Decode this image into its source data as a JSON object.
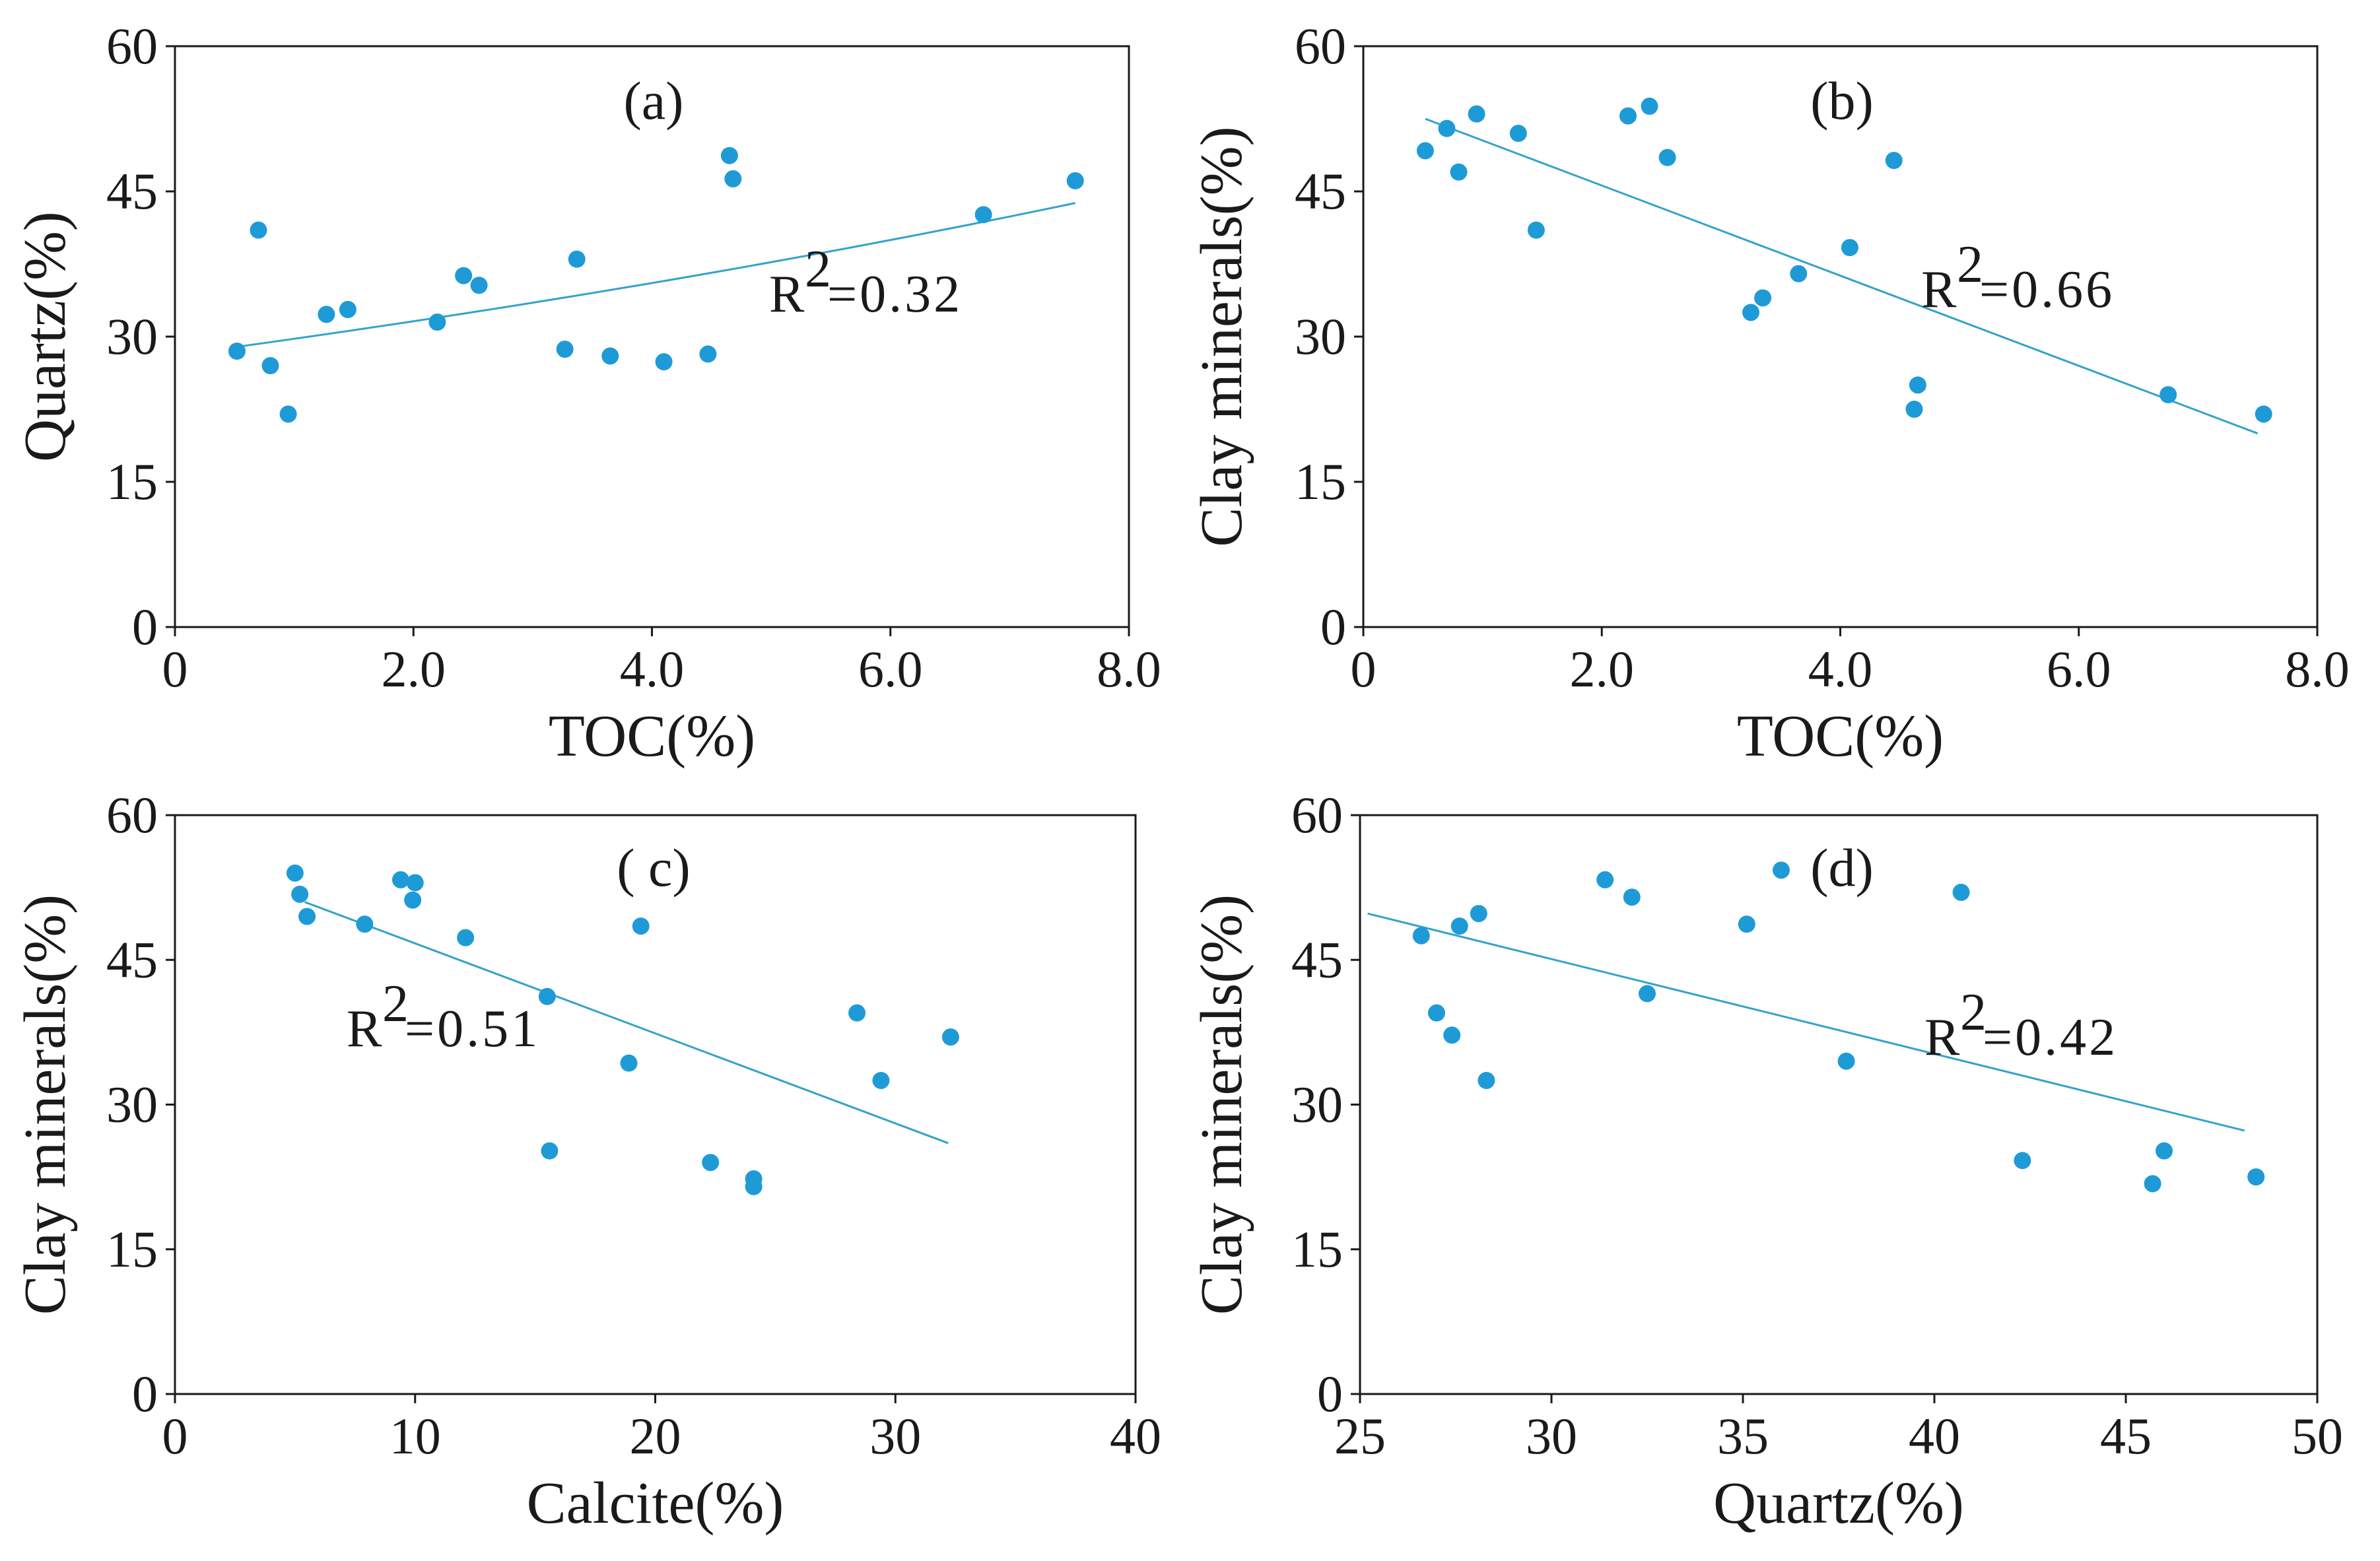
{
  "colors": {
    "point": "#1e9bd7",
    "trend": "#32a3cc",
    "axis": "#1a1a1a"
  },
  "chart_data": [
    {
      "type": "scatter",
      "panel_label": "(a)",
      "xlabel": "TOC(%)",
      "ylabel": "Quartz(%)",
      "xlim": [
        0,
        8
      ],
      "ylim": [
        0,
        60
      ],
      "xticks": [
        0,
        2,
        4,
        6,
        8
      ],
      "xtick_labels": [
        "0",
        "2.0",
        "4.0",
        "6.0",
        "8.0"
      ],
      "yticks": [
        0,
        15,
        30,
        45,
        60
      ],
      "ytick_labels": [
        "0",
        "15",
        "30",
        "45",
        "60"
      ],
      "trend": {
        "kind": "exponential",
        "x": [
          0.55,
          7.55
        ],
        "y": [
          29.0,
          43.8
        ]
      },
      "r2_label": "R",
      "r2_sup": "2",
      "r2_value": "=0.32",
      "points": [
        {
          "x": 0.52,
          "y": 28.5
        },
        {
          "x": 0.7,
          "y": 41.0
        },
        {
          "x": 0.8,
          "y": 27.0
        },
        {
          "x": 0.95,
          "y": 22.0
        },
        {
          "x": 1.27,
          "y": 32.3
        },
        {
          "x": 1.45,
          "y": 32.8
        },
        {
          "x": 2.2,
          "y": 31.5
        },
        {
          "x": 2.42,
          "y": 36.3
        },
        {
          "x": 2.55,
          "y": 35.3
        },
        {
          "x": 3.27,
          "y": 28.7
        },
        {
          "x": 3.37,
          "y": 38.0
        },
        {
          "x": 3.65,
          "y": 28.0
        },
        {
          "x": 4.1,
          "y": 27.4
        },
        {
          "x": 4.47,
          "y": 28.2
        },
        {
          "x": 4.65,
          "y": 48.7
        },
        {
          "x": 4.68,
          "y": 46.3
        },
        {
          "x": 6.78,
          "y": 42.6
        },
        {
          "x": 7.55,
          "y": 46.1
        }
      ]
    },
    {
      "type": "scatter",
      "panel_label": "(b)",
      "xlabel": "TOC(%)",
      "ylabel": "Clay minerals(%)",
      "xlim": [
        0,
        8
      ],
      "ylim": [
        0,
        60
      ],
      "xticks": [
        0,
        2,
        4,
        6,
        8
      ],
      "xtick_labels": [
        "0",
        "2.0",
        "4.0",
        "6.0",
        "8.0"
      ],
      "yticks": [
        0,
        15,
        30,
        45,
        60
      ],
      "ytick_labels": [
        "0",
        "15",
        "30",
        "45",
        "60"
      ],
      "trend": {
        "kind": "linear",
        "x": [
          0.52,
          7.5
        ],
        "y": [
          52.5,
          20.0
        ]
      },
      "r2_label": "R",
      "r2_sup": "2",
      "r2_value": "=0.66",
      "points": [
        {
          "x": 0.52,
          "y": 49.2
        },
        {
          "x": 0.7,
          "y": 51.5
        },
        {
          "x": 0.8,
          "y": 47.0
        },
        {
          "x": 0.95,
          "y": 53.0
        },
        {
          "x": 1.3,
          "y": 51.0
        },
        {
          "x": 1.45,
          "y": 41.0
        },
        {
          "x": 2.22,
          "y": 52.8
        },
        {
          "x": 2.4,
          "y": 53.8
        },
        {
          "x": 2.55,
          "y": 48.5
        },
        {
          "x": 3.25,
          "y": 32.5
        },
        {
          "x": 3.35,
          "y": 34.0
        },
        {
          "x": 3.65,
          "y": 36.5
        },
        {
          "x": 4.08,
          "y": 39.2
        },
        {
          "x": 4.45,
          "y": 48.2
        },
        {
          "x": 4.62,
          "y": 22.5
        },
        {
          "x": 4.65,
          "y": 25.0
        },
        {
          "x": 6.75,
          "y": 24.0
        },
        {
          "x": 7.55,
          "y": 22.0
        }
      ]
    },
    {
      "type": "scatter",
      "panel_label": "( c)",
      "xlabel": "Calcite(%)",
      "ylabel": "Clay minerals(%)",
      "xlim": [
        0,
        40
      ],
      "ylim": [
        0,
        60
      ],
      "xticks": [
        0,
        10,
        20,
        30,
        40
      ],
      "xtick_labels": [
        "0",
        "10",
        "20",
        "30",
        "40"
      ],
      "yticks": [
        0,
        15,
        30,
        45,
        60
      ],
      "ytick_labels": [
        "0",
        "15",
        "30",
        "45",
        "60"
      ],
      "trend": {
        "kind": "linear",
        "x": [
          5.4,
          32.2
        ],
        "y": [
          51.0,
          26.0
        ]
      },
      "r2_label": "R",
      "r2_sup": "2",
      "r2_value": "=0.51",
      "points": [
        {
          "x": 5.0,
          "y": 54.0
        },
        {
          "x": 5.2,
          "y": 51.8
        },
        {
          "x": 5.5,
          "y": 49.5
        },
        {
          "x": 7.9,
          "y": 48.7
        },
        {
          "x": 9.4,
          "y": 53.3
        },
        {
          "x": 9.9,
          "y": 51.2
        },
        {
          "x": 10.0,
          "y": 53.0
        },
        {
          "x": 12.1,
          "y": 47.3
        },
        {
          "x": 15.5,
          "y": 41.2
        },
        {
          "x": 15.6,
          "y": 25.2
        },
        {
          "x": 18.9,
          "y": 34.3
        },
        {
          "x": 19.4,
          "y": 48.5
        },
        {
          "x": 22.3,
          "y": 24.0
        },
        {
          "x": 24.1,
          "y": 22.3
        },
        {
          "x": 24.1,
          "y": 21.5
        },
        {
          "x": 28.4,
          "y": 39.5
        },
        {
          "x": 29.4,
          "y": 32.5
        },
        {
          "x": 32.3,
          "y": 37.0
        }
      ]
    },
    {
      "type": "scatter",
      "panel_label": "(d)",
      "xlabel": "Quartz(%)",
      "ylabel": "Clay minerals(%)",
      "xlim": [
        25,
        50
      ],
      "ylim": [
        0,
        60
      ],
      "xticks": [
        25,
        30,
        35,
        40,
        45,
        50
      ],
      "xtick_labels": [
        "25",
        "30",
        "35",
        "40",
        "45",
        "50"
      ],
      "yticks": [
        0,
        15,
        30,
        45,
        60
      ],
      "ytick_labels": [
        "0",
        "15",
        "30",
        "45",
        "60"
      ],
      "trend": {
        "kind": "linear",
        "x": [
          25.2,
          48.1
        ],
        "y": [
          49.8,
          27.3
        ]
      },
      "r2_label": "R",
      "r2_sup": "2",
      "r2_value": "=0.42",
      "points": [
        {
          "x": 26.6,
          "y": 47.5
        },
        {
          "x": 27.0,
          "y": 39.5
        },
        {
          "x": 27.4,
          "y": 37.2
        },
        {
          "x": 27.6,
          "y": 48.5
        },
        {
          "x": 28.1,
          "y": 49.8
        },
        {
          "x": 28.3,
          "y": 32.5
        },
        {
          "x": 31.4,
          "y": 53.3
        },
        {
          "x": 32.1,
          "y": 51.5
        },
        {
          "x": 32.5,
          "y": 41.5
        },
        {
          "x": 35.1,
          "y": 48.7
        },
        {
          "x": 36.0,
          "y": 54.3
        },
        {
          "x": 37.7,
          "y": 34.5
        },
        {
          "x": 40.7,
          "y": 52.0
        },
        {
          "x": 42.3,
          "y": 24.2
        },
        {
          "x": 45.7,
          "y": 21.8
        },
        {
          "x": 46.0,
          "y": 25.2
        },
        {
          "x": 48.4,
          "y": 22.5
        }
      ]
    }
  ]
}
